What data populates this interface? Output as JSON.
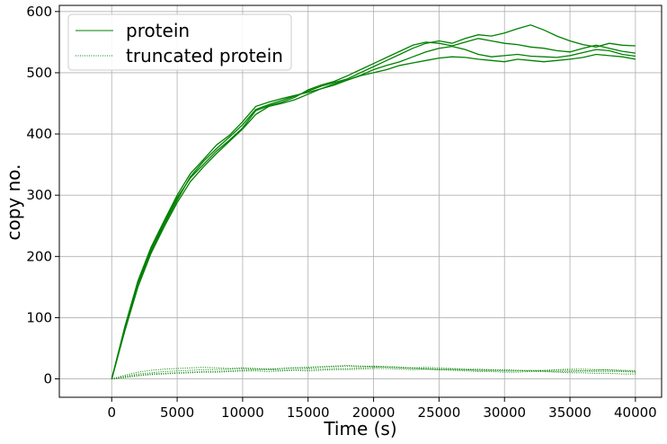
{
  "chart_data": {
    "type": "line",
    "title": "",
    "xlabel": "Time (s)",
    "ylabel": "copy no.",
    "xlim": [
      -4000,
      42000
    ],
    "ylim": [
      -30,
      610
    ],
    "xticks": [
      0,
      5000,
      10000,
      15000,
      20000,
      25000,
      30000,
      35000,
      40000
    ],
    "yticks": [
      0,
      100,
      200,
      300,
      400,
      500,
      600
    ],
    "grid": true,
    "legend_position": "top-left",
    "legend": [
      {
        "label": "protein",
        "style": "solid"
      },
      {
        "label": "truncated protein",
        "style": "dotted"
      }
    ],
    "colors": {
      "series": "#008000",
      "grid": "#b0b0b0",
      "axes": "#000000"
    },
    "x": [
      0,
      1000,
      2000,
      3000,
      4000,
      5000,
      6000,
      7000,
      8000,
      9000,
      10000,
      11000,
      12000,
      13000,
      14000,
      15000,
      16000,
      17000,
      18000,
      19000,
      20000,
      21000,
      22000,
      23000,
      24000,
      25000,
      26000,
      27000,
      28000,
      29000,
      30000,
      31000,
      32000,
      33000,
      34000,
      35000,
      36000,
      37000,
      38000,
      39000,
      40000
    ],
    "series": [
      {
        "group": "protein",
        "style": "solid",
        "values": [
          0,
          85,
          160,
          215,
          258,
          300,
          335,
          358,
          382,
          398,
          420,
          445,
          452,
          458,
          463,
          468,
          474,
          480,
          488,
          496,
          505,
          512,
          518,
          526,
          534,
          540,
          543,
          538,
          530,
          526,
          528,
          530,
          527,
          526,
          525,
          528,
          533,
          538,
          536,
          530,
          527
        ]
      },
      {
        "group": "protein",
        "style": "solid",
        "values": [
          0,
          80,
          155,
          208,
          252,
          292,
          330,
          355,
          376,
          395,
          415,
          440,
          448,
          455,
          462,
          470,
          478,
          484,
          490,
          500,
          510,
          520,
          530,
          540,
          548,
          552,
          548,
          556,
          562,
          560,
          565,
          572,
          578,
          570,
          560,
          552,
          546,
          542,
          548,
          545,
          544
        ]
      },
      {
        "group": "protein",
        "style": "solid",
        "values": [
          0,
          82,
          158,
          212,
          255,
          296,
          328,
          350,
          372,
          390,
          410,
          438,
          446,
          452,
          460,
          472,
          480,
          486,
          495,
          505,
          515,
          525,
          535,
          545,
          550,
          548,
          544,
          550,
          556,
          552,
          548,
          546,
          542,
          540,
          536,
          534,
          540,
          545,
          540,
          535,
          532
        ]
      },
      {
        "group": "protein",
        "style": "solid",
        "values": [
          0,
          78,
          150,
          205,
          248,
          288,
          322,
          346,
          368,
          388,
          408,
          432,
          445,
          450,
          456,
          465,
          474,
          482,
          488,
          495,
          500,
          505,
          512,
          516,
          520,
          524,
          526,
          525,
          522,
          520,
          518,
          522,
          520,
          518,
          520,
          522,
          525,
          530,
          528,
          526,
          522
        ]
      },
      {
        "group": "truncated protein",
        "style": "dotted",
        "values": [
          0,
          4,
          8,
          10,
          12,
          13,
          14,
          15,
          15,
          16,
          17,
          16,
          16,
          17,
          18,
          18,
          19,
          20,
          21,
          20,
          21,
          20,
          19,
          18,
          19,
          18,
          17,
          16,
          16,
          15,
          14,
          14,
          13,
          13,
          14,
          14,
          13,
          12,
          12,
          12,
          11
        ]
      },
      {
        "group": "truncated protein",
        "style": "dotted",
        "values": [
          0,
          6,
          11,
          14,
          16,
          17,
          18,
          19,
          18,
          17,
          18,
          17,
          16,
          17,
          18,
          19,
          20,
          21,
          22,
          21,
          20,
          19,
          18,
          17,
          16,
          15,
          16,
          15,
          14,
          14,
          13,
          13,
          14,
          13,
          12,
          12,
          13,
          14,
          15,
          14,
          13
        ]
      },
      {
        "group": "truncated protein",
        "style": "dotted",
        "values": [
          0,
          2,
          5,
          7,
          8,
          9,
          10,
          11,
          11,
          12,
          13,
          13,
          12,
          13,
          14,
          13,
          14,
          15,
          15,
          16,
          17,
          17,
          16,
          15,
          16,
          15,
          14,
          13,
          12,
          12,
          11,
          11,
          12,
          12,
          11,
          10,
          10,
          9,
          9,
          8,
          8
        ]
      },
      {
        "group": "truncated protein",
        "style": "dotted",
        "values": [
          0,
          3,
          6,
          8,
          9,
          10,
          11,
          12,
          12,
          13,
          14,
          15,
          15,
          14,
          15,
          16,
          16,
          17,
          17,
          18,
          19,
          20,
          19,
          18,
          17,
          16,
          15,
          15,
          14,
          14,
          15,
          14,
          13,
          14,
          15,
          16,
          16,
          15,
          14,
          13,
          12
        ]
      }
    ]
  }
}
